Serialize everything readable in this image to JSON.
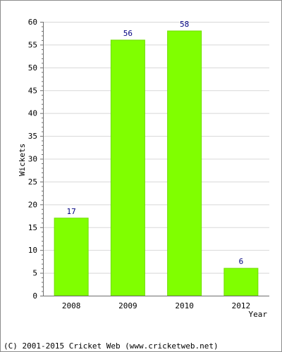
{
  "chart_data": {
    "type": "bar",
    "categories": [
      "2008",
      "2009",
      "2010",
      "2012"
    ],
    "values": [
      17,
      56,
      58,
      6
    ],
    "data_labels": [
      "17",
      "56",
      "58",
      "6"
    ],
    "xlabel": "Year",
    "ylabel": "Wickets",
    "ylim": [
      0,
      60
    ],
    "yticks": [
      0,
      5,
      10,
      15,
      20,
      25,
      30,
      35,
      40,
      45,
      50,
      55,
      60
    ],
    "grid": true,
    "bar_color": "#80ff00",
    "bar_edge_color": "#70dd00",
    "label_color": "#000080",
    "grid_color": "#d8d8d8",
    "axis_color": "#6f6f6f"
  },
  "footer": {
    "copyright": "(C) 2001-2015 Cricket Web (www.cricketweb.net)"
  }
}
